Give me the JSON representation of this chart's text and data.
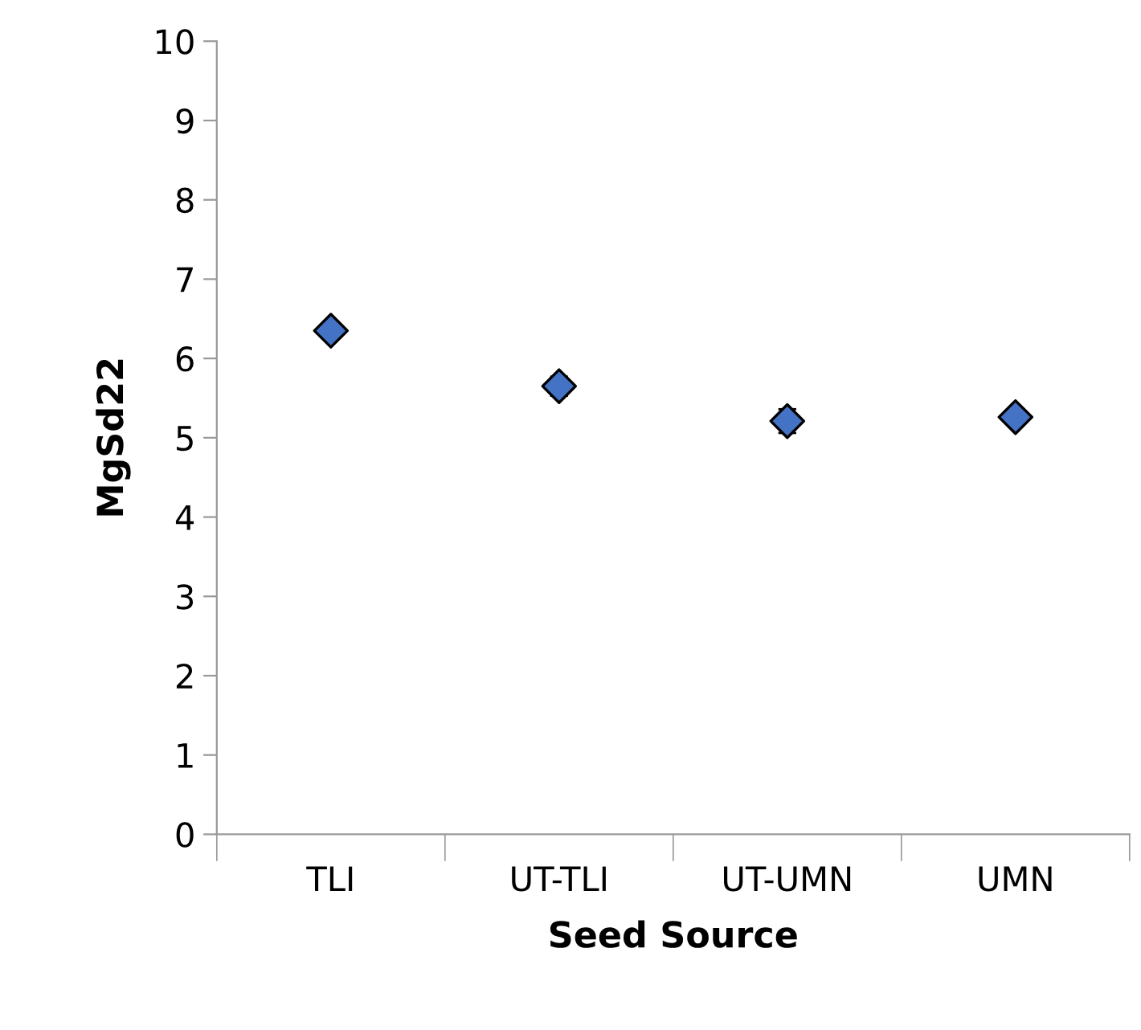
{
  "chart_data": {
    "type": "scatter",
    "xlabel": "Seed Source",
    "ylabel": "MgSd22",
    "categories": [
      "TLI",
      "UT-TLI",
      "UT-UMN",
      "UMN"
    ],
    "series": [
      {
        "color": "#4472c4",
        "values": [
          6.35,
          5.65,
          5.21,
          5.26
        ],
        "errors": [
          null,
          0.12,
          0.15,
          null
        ]
      }
    ],
    "marker": "diamond",
    "ylim": [
      0,
      10
    ],
    "yticks": [
      0,
      1,
      2,
      3,
      4,
      5,
      6,
      7,
      8,
      9,
      10
    ],
    "grid": false,
    "legend": false
  }
}
